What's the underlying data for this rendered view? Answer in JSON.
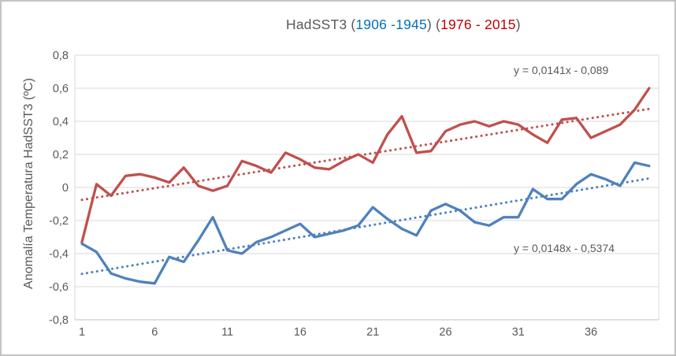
{
  "title": {
    "part1": "HadSST3 (",
    "period1": "1906 -1945",
    "mid": ") (",
    "period2": "1976 - 2015",
    "end": ")",
    "base_color": "#595959",
    "period1_color": "#0070C0",
    "period2_color": "#C00000"
  },
  "y_axis": {
    "title": "Anomalía Temperatura HadSST3 (ºC)",
    "tick_labels": [
      "0,8",
      "0,6",
      "0,4",
      "0,2",
      "0",
      "-0,2",
      "-0,4",
      "-0,6",
      "-0,8"
    ],
    "tick_values": [
      0.8,
      0.6,
      0.4,
      0.2,
      0,
      -0.2,
      -0.4,
      -0.6,
      -0.8
    ]
  },
  "x_axis": {
    "tick_labels": [
      "1",
      "6",
      "11",
      "16",
      "21",
      "26",
      "31",
      "36"
    ],
    "tick_values": [
      1,
      6,
      11,
      16,
      21,
      26,
      31,
      36
    ]
  },
  "equations": {
    "red": "y = 0,0141x - 0,089",
    "blue": "y = 0,0148x - 0,5374"
  },
  "colors": {
    "red_line": "#C0504D",
    "blue_line": "#4F81BD",
    "gridline": "#D9D9D9",
    "axis_line": "#BFBFBF",
    "label_text": "#595959"
  },
  "chart_data": {
    "type": "line",
    "title": "HadSST3 (1906 -1945) (1976 - 2015)",
    "xlabel": "",
    "ylabel": "Anomalía Temperatura HadSST3 (ºC)",
    "xlim": [
      1,
      40
    ],
    "ylim": [
      -0.8,
      0.8
    ],
    "x": [
      1,
      2,
      3,
      4,
      5,
      6,
      7,
      8,
      9,
      10,
      11,
      12,
      13,
      14,
      15,
      16,
      17,
      18,
      19,
      20,
      21,
      22,
      23,
      24,
      25,
      26,
      27,
      28,
      29,
      30,
      31,
      32,
      33,
      34,
      35,
      36,
      37,
      38,
      39,
      40
    ],
    "series": [
      {
        "name": "1976 - 2015",
        "color": "#C0504D",
        "values": [
          -0.33,
          0.02,
          -0.05,
          0.07,
          0.08,
          0.06,
          0.03,
          0.12,
          0.01,
          -0.02,
          0.01,
          0.16,
          0.13,
          0.09,
          0.21,
          0.17,
          0.12,
          0.11,
          0.16,
          0.2,
          0.15,
          0.32,
          0.43,
          0.21,
          0.22,
          0.34,
          0.38,
          0.4,
          0.37,
          0.4,
          0.38,
          0.32,
          0.27,
          0.41,
          0.42,
          0.3,
          0.34,
          0.38,
          0.47,
          0.6
        ]
      },
      {
        "name": "1906 -1945",
        "color": "#4F81BD",
        "values": [
          -0.34,
          -0.39,
          -0.52,
          -0.55,
          -0.57,
          -0.58,
          -0.42,
          -0.45,
          -0.32,
          -0.18,
          -0.38,
          -0.4,
          -0.33,
          -0.3,
          -0.26,
          -0.22,
          -0.3,
          -0.28,
          -0.26,
          -0.23,
          -0.12,
          -0.19,
          -0.25,
          -0.29,
          -0.14,
          -0.1,
          -0.14,
          -0.21,
          -0.23,
          -0.18,
          -0.18,
          -0.01,
          -0.07,
          -0.07,
          0.02,
          0.08,
          0.05,
          0.01,
          0.15,
          0.13
        ]
      }
    ],
    "trendlines": [
      {
        "series": "1976 - 2015",
        "slope": 0.0141,
        "intercept": -0.089,
        "label": "y = 0,0141x - 0,089",
        "color": "#C0504D",
        "style": "dotted"
      },
      {
        "series": "1906 -1945",
        "slope": 0.0148,
        "intercept": -0.5374,
        "label": "y = 0,0148x - 0,5374",
        "color": "#4F81BD",
        "style": "dotted"
      }
    ],
    "legend": "none",
    "grid": "horizontal"
  }
}
